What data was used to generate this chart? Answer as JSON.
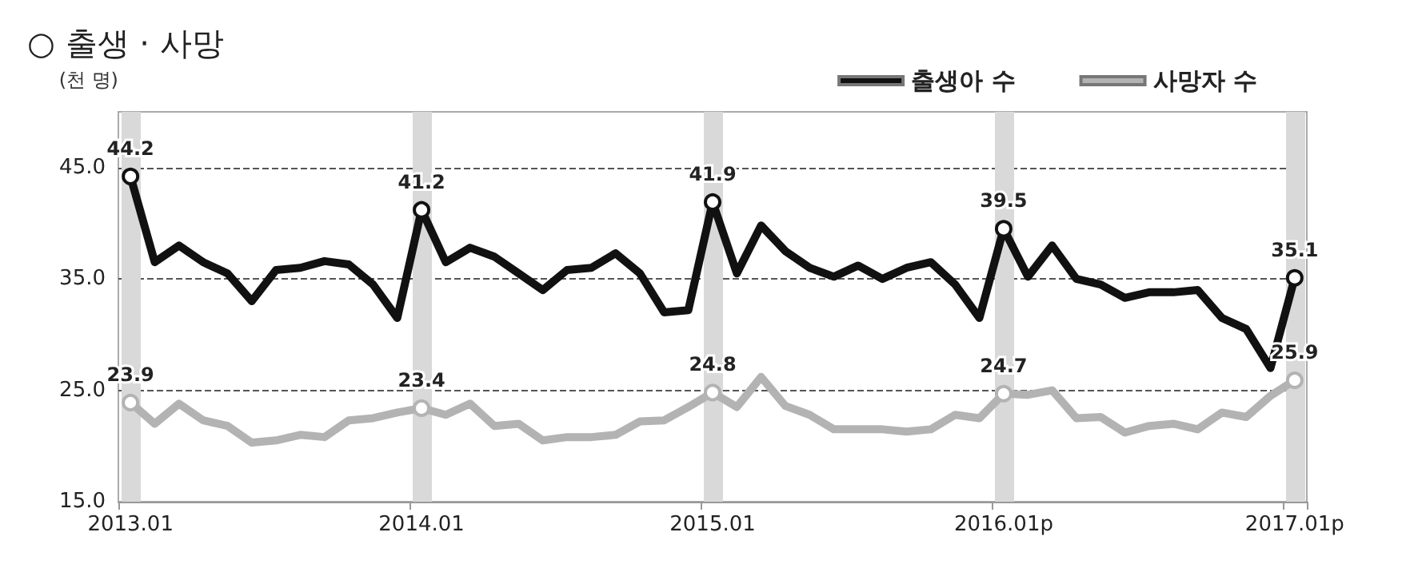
{
  "chart_data": {
    "type": "line",
    "title": "○ 출생 · 사망",
    "ylabel": "(천 명)",
    "categories": [
      "2013.01",
      null,
      null,
      null,
      null,
      null,
      null,
      null,
      null,
      null,
      null,
      null,
      "2014.01",
      null,
      null,
      null,
      null,
      null,
      null,
      null,
      null,
      null,
      null,
      null,
      "2015.01",
      null,
      null,
      null,
      null,
      null,
      null,
      null,
      null,
      null,
      null,
      null,
      "2016.01p",
      null,
      null,
      null,
      null,
      null,
      null,
      null,
      null,
      null,
      null,
      null,
      "2017.01p"
    ],
    "series": [
      {
        "name": "출생아 수",
        "color": "#111111",
        "values": [
          44.2,
          36.5,
          38,
          36.5,
          35.5,
          33,
          35.8,
          36,
          36.6,
          36.3,
          34.5,
          31.5,
          41.2,
          36.5,
          37.8,
          37,
          35.5,
          34,
          35.8,
          36,
          37.3,
          35.5,
          32,
          32.2,
          41.9,
          35.5,
          39.8,
          37.5,
          36,
          35.2,
          36.2,
          35,
          36,
          36.5,
          34.5,
          31.5,
          39.5,
          35.2,
          38,
          35,
          34.5,
          33.3,
          33.8,
          33.8,
          34,
          31.5,
          30.5,
          27,
          35.1
        ],
        "value_labels": [
          "44.2",
          null,
          null,
          null,
          null,
          null,
          null,
          null,
          null,
          null,
          null,
          null,
          "41.2",
          null,
          null,
          null,
          null,
          null,
          null,
          null,
          null,
          null,
          null,
          null,
          "41.9",
          null,
          null,
          null,
          null,
          null,
          null,
          null,
          null,
          null,
          null,
          null,
          "39.5",
          null,
          null,
          null,
          null,
          null,
          null,
          null,
          null,
          null,
          null,
          null,
          "35.1"
        ]
      },
      {
        "name": "사망자 수",
        "color": "#b3b3b3",
        "values": [
          23.9,
          22,
          23.8,
          22.3,
          21.8,
          20.3,
          20.5,
          21,
          20.8,
          22.3,
          22.5,
          23,
          23.4,
          22.8,
          23.8,
          21.8,
          22,
          20.5,
          20.8,
          20.8,
          21,
          22.2,
          22.3,
          23.5,
          24.8,
          23.5,
          26.2,
          23.6,
          22.8,
          21.5,
          21.5,
          21.5,
          21.3,
          21.5,
          22.8,
          22.5,
          24.7,
          24.6,
          25,
          22.5,
          22.6,
          21.2,
          21.8,
          22,
          21.5,
          23,
          22.6,
          24.5,
          25.9
        ],
        "value_labels": [
          "23.9",
          null,
          null,
          null,
          null,
          null,
          null,
          null,
          null,
          null,
          null,
          null,
          "23.4",
          null,
          null,
          null,
          null,
          null,
          null,
          null,
          null,
          null,
          null,
          null,
          "24.8",
          null,
          null,
          null,
          null,
          null,
          null,
          null,
          null,
          null,
          null,
          null,
          "24.7",
          null,
          null,
          null,
          null,
          null,
          null,
          null,
          null,
          null,
          null,
          null,
          "25.9"
        ]
      }
    ],
    "ylim": [
      15,
      50
    ],
    "yticks": [
      {
        "value": 15,
        "label": "15.0"
      },
      {
        "value": 25,
        "label": "25.0"
      },
      {
        "value": 35,
        "label": "35.0"
      },
      {
        "value": 45,
        "label": "45.0"
      }
    ],
    "grid": "y",
    "legend": "top right",
    "line_style": "solid",
    "ref_lines": [
      {
        "axis": "x",
        "value": "2013.01",
        "color": "#d9d9d9"
      },
      {
        "axis": "x",
        "value": "2014.01",
        "color": "#d9d9d9"
      },
      {
        "axis": "x",
        "value": "2015.01",
        "color": "#d9d9d9"
      },
      {
        "axis": "x",
        "value": "2016.01p",
        "color": "#d9d9d9"
      },
      {
        "axis": "x",
        "value": "2017.01p",
        "color": "#d9d9d9"
      }
    ]
  }
}
